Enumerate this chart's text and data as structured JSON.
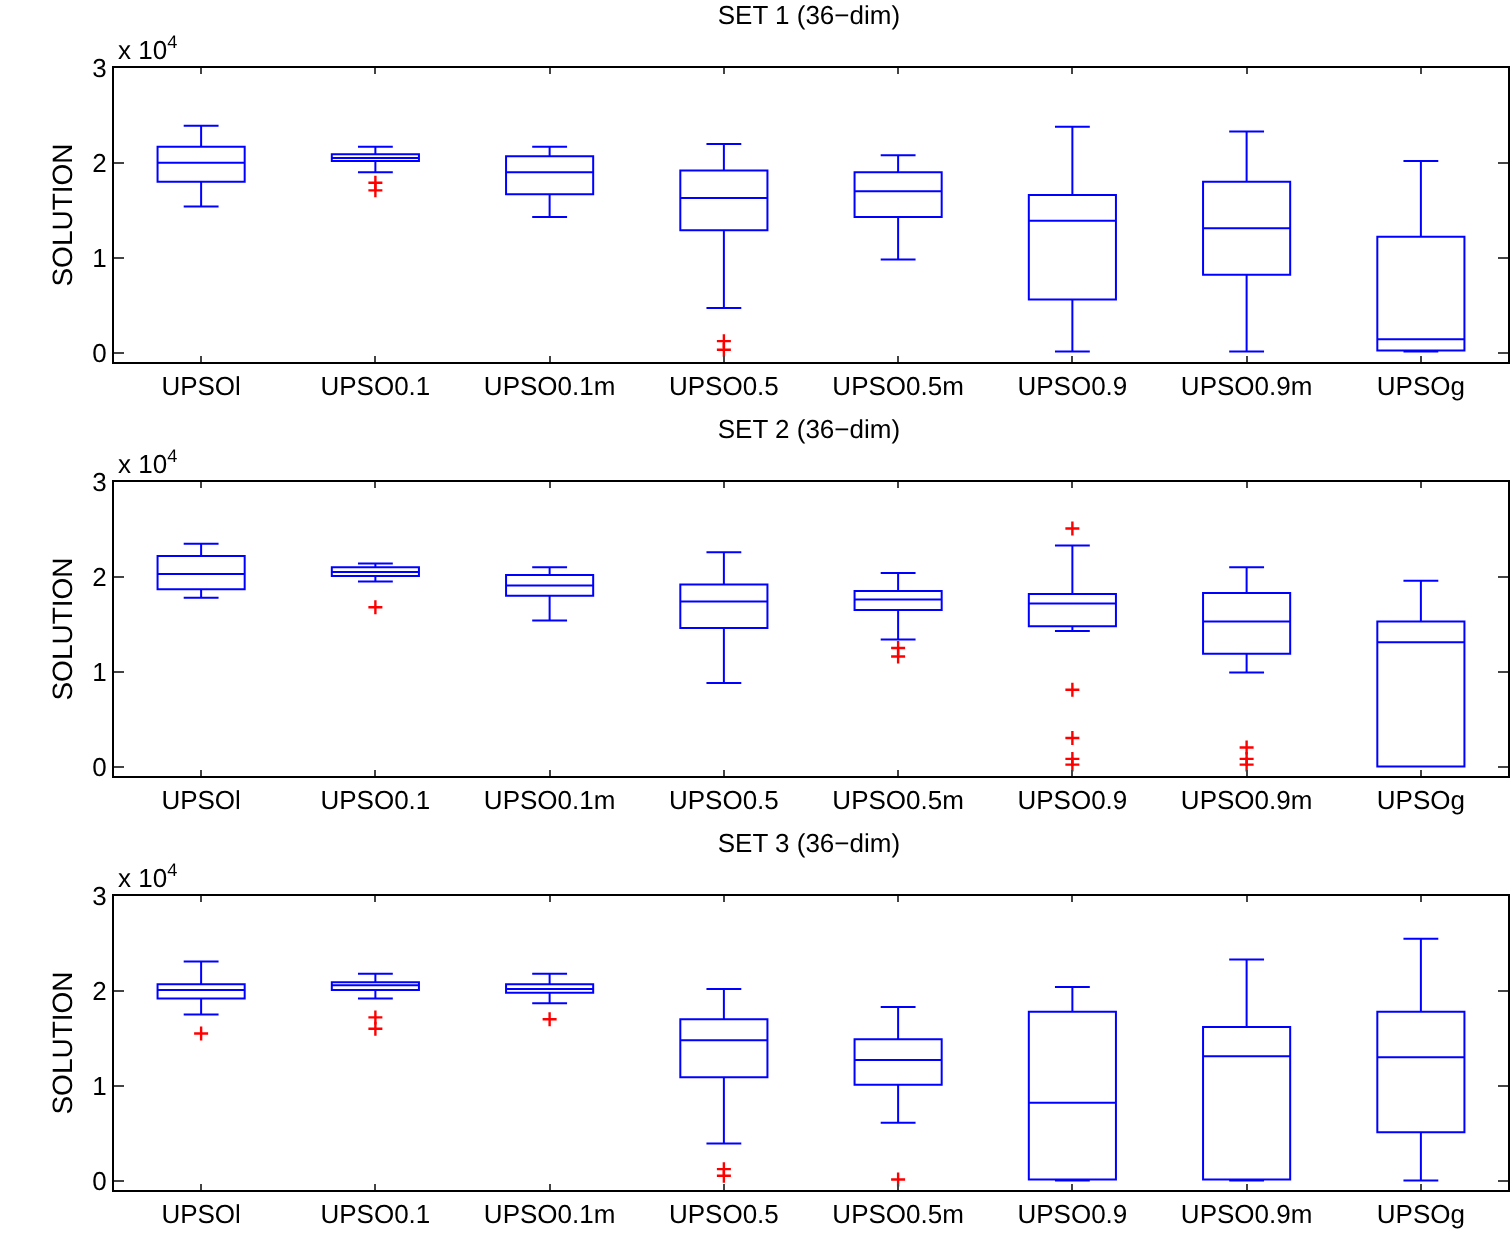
{
  "chart_data": [
    {
      "type": "box",
      "title": "SET 1 (36−dim)",
      "ylabel": "SOLUTION",
      "annotations": [
        "x 10$^{4}$"
      ],
      "categories": [
        "UPSOl",
        "UPSO0.1",
        "UPSO0.1m",
        "UPSO0.5",
        "UPSO0.5m",
        "UPSO0.9",
        "UPSO0.9m",
        "UPSOg"
      ],
      "ylim": [
        -0.1,
        3
      ],
      "yticks": [
        0,
        1,
        2,
        3
      ],
      "series": [
        {
          "color": "#0000ff",
          "boxes": [
            {
              "low": 1.54,
              "q1": 1.8,
              "median": 2.0,
              "q3": 2.17,
              "high": 2.39
            },
            {
              "low": 1.9,
              "q1": 2.02,
              "median": 2.05,
              "q3": 2.09,
              "high": 2.17,
              "outliers": [
                1.79,
                1.71
              ]
            },
            {
              "low": 1.43,
              "q1": 1.67,
              "median": 1.9,
              "q3": 2.07,
              "high": 2.17
            },
            {
              "low": 0.47,
              "q1": 1.29,
              "median": 1.63,
              "q3": 1.92,
              "high": 2.2,
              "outliers": [
                0.12,
                0.03
              ]
            },
            {
              "low": 0.98,
              "q1": 1.43,
              "median": 1.7,
              "q3": 1.9,
              "high": 2.08
            },
            {
              "low": 0.01,
              "q1": 0.56,
              "median": 1.39,
              "q3": 1.66,
              "high": 2.38
            },
            {
              "low": 0.01,
              "q1": 0.82,
              "median": 1.31,
              "q3": 1.8,
              "high": 2.33
            },
            {
              "low": 0.01,
              "q1": 0.02,
              "median": 0.14,
              "q3": 1.22,
              "high": 2.02
            }
          ]
        }
      ]
    },
    {
      "type": "box",
      "title": "SET 2 (36−dim)",
      "ylabel": "SOLUTION",
      "annotations": [
        "x 10$^{4}$"
      ],
      "categories": [
        "UPSOl",
        "UPSO0.1",
        "UPSO0.1m",
        "UPSO0.5",
        "UPSO0.5m",
        "UPSO0.9",
        "UPSO0.9m",
        "UPSOg"
      ],
      "ylim": [
        -0.1,
        3
      ],
      "yticks": [
        0,
        1,
        2,
        3
      ],
      "series": [
        {
          "color": "#0000ff",
          "boxes": [
            {
              "low": 1.78,
              "q1": 1.87,
              "median": 2.03,
              "q3": 2.22,
              "high": 2.35
            },
            {
              "low": 1.95,
              "q1": 2.01,
              "median": 2.05,
              "q3": 2.1,
              "high": 2.14,
              "outliers": [
                1.68
              ]
            },
            {
              "low": 1.54,
              "q1": 1.8,
              "median": 1.91,
              "q3": 2.02,
              "high": 2.1
            },
            {
              "low": 0.88,
              "q1": 1.46,
              "median": 1.74,
              "q3": 1.92,
              "high": 2.26
            },
            {
              "low": 1.34,
              "q1": 1.65,
              "median": 1.76,
              "q3": 1.85,
              "high": 2.04,
              "outliers": [
                1.25,
                1.16
              ]
            },
            {
              "low": 1.43,
              "q1": 1.48,
              "median": 1.72,
              "q3": 1.82,
              "high": 2.33,
              "outliers": [
                2.51,
                0.81,
                0.3,
                0.08,
                0.02
              ]
            },
            {
              "low": 0.99,
              "q1": 1.19,
              "median": 1.53,
              "q3": 1.83,
              "high": 2.1,
              "outliers": [
                0.2,
                0.08,
                0.02
              ]
            },
            {
              "low": 0,
              "q1": 0,
              "median": 1.31,
              "q3": 1.53,
              "high": 1.96
            }
          ]
        }
      ]
    },
    {
      "type": "box",
      "title": "SET 3 (36−dim)",
      "ylabel": "SOLUTION",
      "annotations": [
        "x 10$^{4}$"
      ],
      "categories": [
        "UPSOl",
        "UPSO0.1",
        "UPSO0.1m",
        "UPSO0.5",
        "UPSO0.5m",
        "UPSO0.9",
        "UPSO0.9m",
        "UPSOg"
      ],
      "ylim": [
        -0.1,
        3
      ],
      "yticks": [
        0,
        1,
        2,
        3
      ],
      "series": [
        {
          "color": "#0000ff",
          "boxes": [
            {
              "low": 1.75,
              "q1": 1.92,
              "median": 2.01,
              "q3": 2.07,
              "high": 2.31,
              "outliers": [
                1.55
              ]
            },
            {
              "low": 1.92,
              "q1": 2.01,
              "median": 2.06,
              "q3": 2.09,
              "high": 2.18,
              "outliers": [
                1.72,
                1.6
              ]
            },
            {
              "low": 1.87,
              "q1": 1.98,
              "median": 2.02,
              "q3": 2.07,
              "high": 2.18,
              "outliers": [
                1.7
              ]
            },
            {
              "low": 0.39,
              "q1": 1.09,
              "median": 1.48,
              "q3": 1.7,
              "high": 2.02,
              "outliers": [
                0.12,
                0.05
              ]
            },
            {
              "low": 0.61,
              "q1": 1.01,
              "median": 1.27,
              "q3": 1.49,
              "high": 1.83,
              "outliers": [
                0.01
              ]
            },
            {
              "low": 0,
              "q1": 0.01,
              "median": 0.82,
              "q3": 1.78,
              "high": 2.04
            },
            {
              "low": 0,
              "q1": 0.01,
              "median": 1.31,
              "q3": 1.62,
              "high": 2.33
            },
            {
              "low": 0,
              "q1": 0.51,
              "median": 1.3,
              "q3": 1.78,
              "high": 2.55
            }
          ]
        }
      ]
    }
  ]
}
